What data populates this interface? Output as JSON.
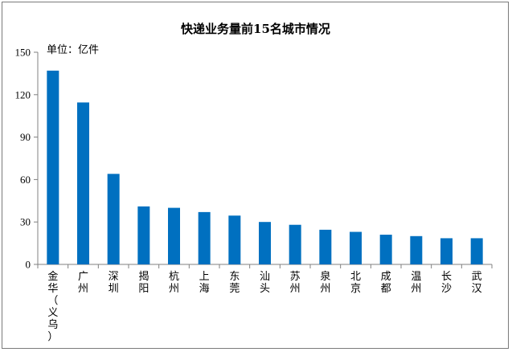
{
  "chart_data": {
    "type": "bar",
    "title": "快递业务量前15名城市情况",
    "unit_label": "单位：亿件",
    "ylim": [
      0,
      150
    ],
    "yticks": [
      0,
      30,
      60,
      90,
      120,
      150
    ],
    "grid": false,
    "legend": "none",
    "bar_color": "#0070C0",
    "categories": [
      "金华（义乌）",
      "广州",
      "深圳",
      "揭阳",
      "杭州",
      "上海",
      "东莞",
      "汕头",
      "苏州",
      "泉州",
      "北京",
      "成都",
      "温州",
      "长沙",
      "武汉"
    ],
    "values": [
      137,
      114.5,
      64,
      41,
      40,
      37,
      34.5,
      30,
      28,
      24.5,
      23,
      21,
      20,
      18.5,
      18.5
    ]
  }
}
